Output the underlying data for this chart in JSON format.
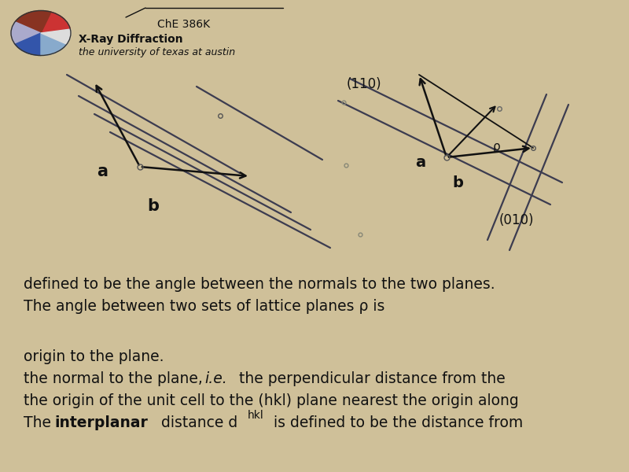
{
  "bg_color": "#cfc099",
  "text_color": "#111111",
  "body_fontsize": 13.5,
  "figsize": [
    8.0,
    6.0
  ],
  "dpi": 100,
  "line1_normal": "The ",
  "line1_bold": "interplanar",
  "line1_after": " distance d",
  "line1_sub": "hkl",
  "line1_rest": " is defined to be the distance from",
  "line2": "the origin of the unit cell to the (hkl) plane nearest the origin along",
  "line3a": "the normal to the plane, ",
  "line3b": "i.e.",
  "line3c": " the perpendicular distance from the",
  "line4": "origin to the plane.",
  "para2_line1": "The angle between two sets of lattice planes ρ is",
  "para2_line2": "defined to be the angle between the normals to the two planes.",
  "footer_text1": "the university of texas at austin",
  "footer_text2": "X-Ray Diffraction",
  "footer_text3": "ChE 386K"
}
